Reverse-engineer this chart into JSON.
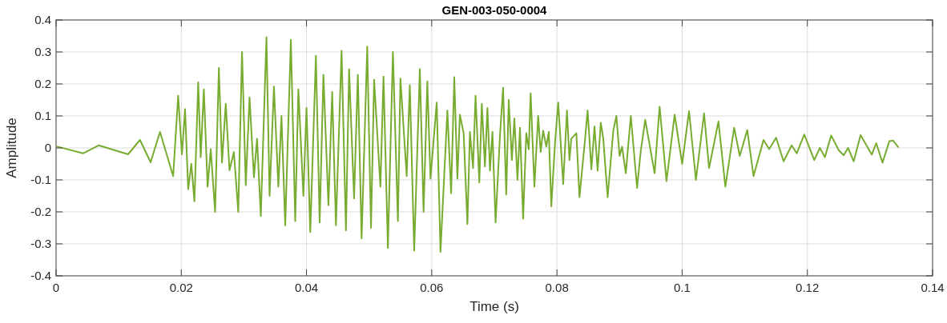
{
  "chart_data": {
    "type": "line",
    "title": "GEN-003-050-0004",
    "xlabel": "Time (s)",
    "ylabel": "Amplitude",
    "xlim": [
      0,
      0.14
    ],
    "xticks": [
      0,
      0.02,
      0.04,
      0.06,
      0.08,
      0.1,
      0.12,
      0.14
    ],
    "ylim": [
      -0.4,
      0.4
    ],
    "yticks": [
      -0.4,
      -0.3,
      -0.2,
      -0.1,
      0,
      0.1,
      0.2,
      0.3,
      0.4
    ],
    "grid": true,
    "marker": "none",
    "line_style": "solid",
    "series": [
      {
        "color": "#77ac30",
        "x": [
          0.0002,
          0.0043,
          0.0068,
          0.0115,
          0.0134,
          0.0151,
          0.0166,
          0.0187,
          0.0195,
          0.0201,
          0.0206,
          0.0211,
          0.0216,
          0.0221,
          0.0227,
          0.0231,
          0.0236,
          0.0242,
          0.0247,
          0.0254,
          0.026,
          0.0265,
          0.0271,
          0.0277,
          0.0284,
          0.0291,
          0.0297,
          0.0303,
          0.0309,
          0.0316,
          0.0321,
          0.0327,
          0.0336,
          0.0341,
          0.0348,
          0.0355,
          0.036,
          0.0366,
          0.0375,
          0.0382,
          0.0387,
          0.0395,
          0.04,
          0.0406,
          0.0415,
          0.0421,
          0.0427,
          0.0435,
          0.0441,
          0.0447,
          0.0456,
          0.0463,
          0.0468,
          0.0476,
          0.0482,
          0.0488,
          0.0497,
          0.0503,
          0.0508,
          0.0518,
          0.0523,
          0.053,
          0.0538,
          0.0546,
          0.055,
          0.056,
          0.0565,
          0.0572,
          0.0581,
          0.0587,
          0.0593,
          0.0598,
          0.0608,
          0.0614,
          0.0625,
          0.0631,
          0.0636,
          0.0641,
          0.0645,
          0.0651,
          0.0657,
          0.0661,
          0.0666,
          0.067,
          0.0676,
          0.068,
          0.0685,
          0.0689,
          0.0693,
          0.0697,
          0.0702,
          0.0709,
          0.0714,
          0.0719,
          0.0723,
          0.0728,
          0.0732,
          0.0737,
          0.0741,
          0.0746,
          0.0751,
          0.0755,
          0.0758,
          0.0764,
          0.077,
          0.0774,
          0.0778,
          0.0783,
          0.0787,
          0.0791,
          0.0797,
          0.0802,
          0.081,
          0.0816,
          0.082,
          0.0823,
          0.0831,
          0.0836,
          0.0845,
          0.0849,
          0.0855,
          0.086,
          0.0865,
          0.087,
          0.0874,
          0.0881,
          0.089,
          0.0895,
          0.09,
          0.0904,
          0.091,
          0.0918,
          0.0928,
          0.0934,
          0.0941,
          0.0956,
          0.0964,
          0.0975,
          0.0988,
          0.1,
          0.1011,
          0.1022,
          0.1035,
          0.1043,
          0.1058,
          0.1069,
          0.1083,
          0.1092,
          0.1104,
          0.1114,
          0.113,
          0.1139,
          0.115,
          0.1162,
          0.1175,
          0.1183,
          0.1195,
          0.1211,
          0.122,
          0.1228,
          0.1238,
          0.125,
          0.1258,
          0.1265,
          0.1274,
          0.1285,
          0.1303,
          0.131,
          0.132,
          0.1331,
          0.1337,
          0.1345
        ],
        "values": [
          0.004,
          -0.017,
          0.008,
          -0.02,
          0.025,
          -0.045,
          0.05,
          -0.088,
          0.163,
          -0.02,
          0.121,
          -0.129,
          -0.05,
          -0.167,
          0.205,
          -0.029,
          0.183,
          -0.121,
          -0.004,
          -0.2,
          0.25,
          -0.046,
          0.138,
          -0.07,
          -0.013,
          -0.2,
          0.3,
          -0.117,
          0.158,
          -0.092,
          0.029,
          -0.213,
          0.346,
          -0.15,
          0.192,
          -0.121,
          0.1,
          -0.242,
          0.338,
          -0.229,
          0.183,
          -0.15,
          0.125,
          -0.263,
          0.288,
          -0.233,
          0.229,
          -0.179,
          0.175,
          -0.242,
          0.304,
          -0.258,
          0.246,
          -0.158,
          0.229,
          -0.283,
          0.317,
          -0.25,
          0.213,
          -0.121,
          0.223,
          -0.313,
          0.3,
          -0.229,
          0.217,
          -0.088,
          0.196,
          -0.321,
          0.246,
          -0.2,
          0.208,
          -0.096,
          0.142,
          -0.325,
          0.117,
          -0.142,
          0.221,
          -0.096,
          0.104,
          0.046,
          -0.238,
          0.05,
          -0.063,
          0.163,
          -0.108,
          0.138,
          -0.058,
          0.125,
          -0.071,
          0.05,
          -0.233,
          0.038,
          0.188,
          -0.146,
          0.15,
          -0.038,
          0.092,
          -0.1,
          0.063,
          -0.221,
          0.046,
          -0.004,
          0.171,
          -0.121,
          0.1,
          -0.013,
          0.054,
          0.004,
          0.05,
          -0.183,
          0.017,
          0.142,
          -0.113,
          0.117,
          -0.038,
          0.029,
          0.046,
          -0.154,
          0.029,
          0.117,
          -0.067,
          0.067,
          -0.071,
          0.079,
          0.029,
          -0.154,
          0.054,
          0.1,
          -0.025,
          0.004,
          -0.079,
          0.1,
          -0.125,
          -0.008,
          0.088,
          -0.079,
          0.129,
          -0.104,
          0.104,
          -0.05,
          0.115,
          -0.1,
          0.108,
          -0.063,
          0.083,
          -0.121,
          0.063,
          -0.025,
          0.056,
          -0.088,
          0.025,
          -0.004,
          0.032,
          -0.042,
          0.008,
          -0.017,
          0.042,
          -0.038,
          0,
          -0.029,
          0.039,
          -0.007,
          -0.023,
          0,
          -0.042,
          0.04,
          -0.021,
          0.015,
          -0.046,
          0.021,
          0.023,
          0.003
        ]
      }
    ]
  }
}
